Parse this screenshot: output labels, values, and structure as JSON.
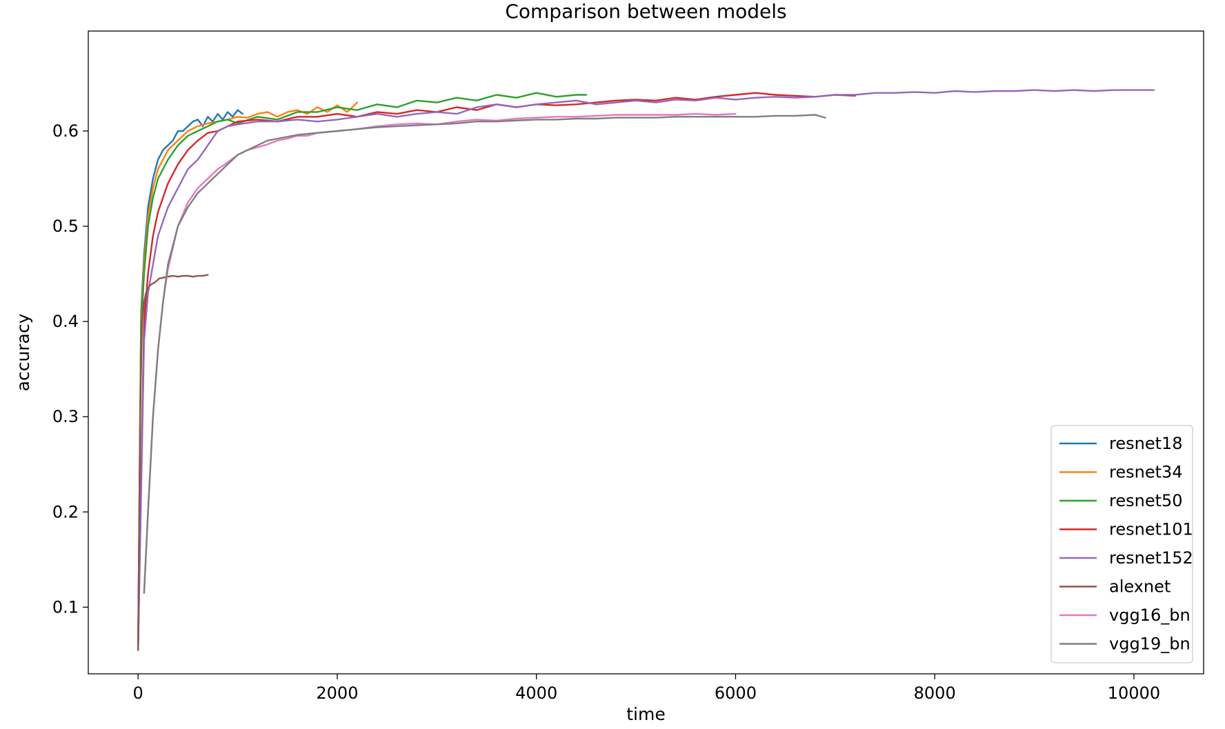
{
  "chart_data": {
    "type": "line",
    "title": "Comparison between models",
    "xlabel": "time",
    "ylabel": "accuracy",
    "xlim": [
      -500,
      10700
    ],
    "ylim": [
      0.03,
      0.705
    ],
    "xticks": [
      0,
      2000,
      4000,
      6000,
      8000,
      10000
    ],
    "xtick_labels": [
      "0",
      "2000",
      "4000",
      "6000",
      "8000",
      "10000"
    ],
    "yticks": [
      0.1,
      0.2,
      0.3,
      0.4,
      0.5,
      0.6
    ],
    "ytick_labels": [
      "0.1",
      "0.2",
      "0.3",
      "0.4",
      "0.5",
      "0.6"
    ],
    "grid": false,
    "legend_position": "lower-right",
    "series": [
      {
        "name": "resnet18",
        "color": "#1f77b4",
        "points": [
          [
            0,
            0.055
          ],
          [
            30,
            0.41
          ],
          [
            60,
            0.47
          ],
          [
            100,
            0.52
          ],
          [
            150,
            0.55
          ],
          [
            200,
            0.57
          ],
          [
            250,
            0.58
          ],
          [
            300,
            0.585
          ],
          [
            350,
            0.59
          ],
          [
            400,
            0.6
          ],
          [
            450,
            0.6
          ],
          [
            500,
            0.605
          ],
          [
            550,
            0.61
          ],
          [
            600,
            0.612
          ],
          [
            650,
            0.605
          ],
          [
            700,
            0.615
          ],
          [
            750,
            0.61
          ],
          [
            800,
            0.618
          ],
          [
            850,
            0.612
          ],
          [
            900,
            0.62
          ],
          [
            950,
            0.615
          ],
          [
            1000,
            0.622
          ],
          [
            1050,
            0.618
          ]
        ]
      },
      {
        "name": "resnet34",
        "color": "#ff7f0e",
        "points": [
          [
            0,
            0.055
          ],
          [
            30,
            0.4
          ],
          [
            60,
            0.46
          ],
          [
            100,
            0.51
          ],
          [
            150,
            0.54
          ],
          [
            200,
            0.56
          ],
          [
            300,
            0.58
          ],
          [
            400,
            0.59
          ],
          [
            500,
            0.6
          ],
          [
            600,
            0.605
          ],
          [
            700,
            0.608
          ],
          [
            800,
            0.61
          ],
          [
            900,
            0.612
          ],
          [
            1000,
            0.615
          ],
          [
            1100,
            0.614
          ],
          [
            1200,
            0.618
          ],
          [
            1300,
            0.62
          ],
          [
            1400,
            0.615
          ],
          [
            1500,
            0.62
          ],
          [
            1600,
            0.622
          ],
          [
            1700,
            0.618
          ],
          [
            1800,
            0.625
          ],
          [
            1900,
            0.62
          ],
          [
            2000,
            0.627
          ],
          [
            2100,
            0.62
          ],
          [
            2200,
            0.63
          ]
        ]
      },
      {
        "name": "resnet50",
        "color": "#2ca02c",
        "points": [
          [
            0,
            0.055
          ],
          [
            30,
            0.39
          ],
          [
            60,
            0.45
          ],
          [
            100,
            0.5
          ],
          [
            150,
            0.53
          ],
          [
            200,
            0.55
          ],
          [
            300,
            0.57
          ],
          [
            400,
            0.585
          ],
          [
            500,
            0.595
          ],
          [
            600,
            0.6
          ],
          [
            700,
            0.605
          ],
          [
            800,
            0.61
          ],
          [
            900,
            0.612
          ],
          [
            1000,
            0.608
          ],
          [
            1200,
            0.615
          ],
          [
            1400,
            0.612
          ],
          [
            1600,
            0.62
          ],
          [
            1800,
            0.62
          ],
          [
            2000,
            0.625
          ],
          [
            2200,
            0.622
          ],
          [
            2400,
            0.628
          ],
          [
            2600,
            0.625
          ],
          [
            2800,
            0.632
          ],
          [
            3000,
            0.63
          ],
          [
            3200,
            0.635
          ],
          [
            3400,
            0.632
          ],
          [
            3600,
            0.638
          ],
          [
            3800,
            0.635
          ],
          [
            4000,
            0.64
          ],
          [
            4200,
            0.636
          ],
          [
            4400,
            0.638
          ],
          [
            4500,
            0.638
          ]
        ]
      },
      {
        "name": "resnet101",
        "color": "#d62728",
        "points": [
          [
            0,
            0.055
          ],
          [
            60,
            0.4
          ],
          [
            100,
            0.45
          ],
          [
            150,
            0.49
          ],
          [
            200,
            0.515
          ],
          [
            300,
            0.545
          ],
          [
            400,
            0.565
          ],
          [
            500,
            0.58
          ],
          [
            600,
            0.59
          ],
          [
            700,
            0.598
          ],
          [
            800,
            0.6
          ],
          [
            900,
            0.605
          ],
          [
            1000,
            0.61
          ],
          [
            1200,
            0.612
          ],
          [
            1400,
            0.61
          ],
          [
            1600,
            0.615
          ],
          [
            1800,
            0.615
          ],
          [
            2000,
            0.618
          ],
          [
            2200,
            0.615
          ],
          [
            2400,
            0.62
          ],
          [
            2600,
            0.618
          ],
          [
            2800,
            0.622
          ],
          [
            3000,
            0.62
          ],
          [
            3200,
            0.625
          ],
          [
            3400,
            0.622
          ],
          [
            3600,
            0.628
          ],
          [
            3800,
            0.625
          ],
          [
            4000,
            0.628
          ],
          [
            4200,
            0.627
          ],
          [
            4400,
            0.628
          ],
          [
            4600,
            0.63
          ],
          [
            4800,
            0.632
          ],
          [
            5000,
            0.633
          ],
          [
            5200,
            0.632
          ],
          [
            5400,
            0.635
          ],
          [
            5600,
            0.633
          ],
          [
            5800,
            0.636
          ],
          [
            6000,
            0.638
          ],
          [
            6200,
            0.64
          ],
          [
            6400,
            0.638
          ],
          [
            6600,
            0.637
          ],
          [
            6800,
            0.636
          ],
          [
            7000,
            0.638
          ],
          [
            7200,
            0.637
          ]
        ]
      },
      {
        "name": "resnet152",
        "color": "#9467bd",
        "points": [
          [
            0,
            0.055
          ],
          [
            60,
            0.38
          ],
          [
            100,
            0.43
          ],
          [
            150,
            0.46
          ],
          [
            200,
            0.49
          ],
          [
            300,
            0.52
          ],
          [
            400,
            0.54
          ],
          [
            500,
            0.56
          ],
          [
            600,
            0.57
          ],
          [
            700,
            0.585
          ],
          [
            800,
            0.6
          ],
          [
            900,
            0.605
          ],
          [
            1000,
            0.607
          ],
          [
            1200,
            0.61
          ],
          [
            1400,
            0.61
          ],
          [
            1600,
            0.612
          ],
          [
            1800,
            0.61
          ],
          [
            2000,
            0.612
          ],
          [
            2200,
            0.615
          ],
          [
            2400,
            0.618
          ],
          [
            2600,
            0.615
          ],
          [
            2800,
            0.618
          ],
          [
            3000,
            0.62
          ],
          [
            3200,
            0.618
          ],
          [
            3400,
            0.625
          ],
          [
            3600,
            0.628
          ],
          [
            3800,
            0.625
          ],
          [
            4000,
            0.628
          ],
          [
            4200,
            0.63
          ],
          [
            4400,
            0.632
          ],
          [
            4600,
            0.628
          ],
          [
            4800,
            0.63
          ],
          [
            5000,
            0.632
          ],
          [
            5200,
            0.63
          ],
          [
            5400,
            0.633
          ],
          [
            5600,
            0.632
          ],
          [
            5800,
            0.635
          ],
          [
            6000,
            0.633
          ],
          [
            6200,
            0.635
          ],
          [
            6400,
            0.636
          ],
          [
            6600,
            0.635
          ],
          [
            6800,
            0.636
          ],
          [
            7000,
            0.638
          ],
          [
            7200,
            0.638
          ],
          [
            7400,
            0.64
          ],
          [
            7600,
            0.64
          ],
          [
            7800,
            0.641
          ],
          [
            8000,
            0.64
          ],
          [
            8200,
            0.642
          ],
          [
            8400,
            0.641
          ],
          [
            8600,
            0.642
          ],
          [
            8800,
            0.642
          ],
          [
            9000,
            0.643
          ],
          [
            9200,
            0.642
          ],
          [
            9400,
            0.643
          ],
          [
            9600,
            0.642
          ],
          [
            9800,
            0.643
          ],
          [
            10000,
            0.643
          ],
          [
            10200,
            0.643
          ]
        ]
      },
      {
        "name": "alexnet",
        "color": "#8c564b",
        "points": [
          [
            0,
            0.055
          ],
          [
            20,
            0.3
          ],
          [
            40,
            0.4
          ],
          [
            60,
            0.42
          ],
          [
            80,
            0.43
          ],
          [
            100,
            0.435
          ],
          [
            120,
            0.438
          ],
          [
            150,
            0.44
          ],
          [
            180,
            0.442
          ],
          [
            210,
            0.445
          ],
          [
            250,
            0.446
          ],
          [
            300,
            0.447
          ],
          [
            350,
            0.448
          ],
          [
            400,
            0.447
          ],
          [
            450,
            0.448
          ],
          [
            500,
            0.448
          ],
          [
            550,
            0.447
          ],
          [
            600,
            0.448
          ],
          [
            650,
            0.448
          ],
          [
            700,
            0.449
          ]
        ]
      },
      {
        "name": "vgg16_bn",
        "color": "#e377c2",
        "points": [
          [
            60,
            0.115
          ],
          [
            100,
            0.2
          ],
          [
            150,
            0.3
          ],
          [
            200,
            0.37
          ],
          [
            250,
            0.42
          ],
          [
            300,
            0.455
          ],
          [
            400,
            0.5
          ],
          [
            500,
            0.525
          ],
          [
            600,
            0.54
          ],
          [
            700,
            0.55
          ],
          [
            800,
            0.56
          ],
          [
            900,
            0.567
          ],
          [
            1000,
            0.575
          ],
          [
            1100,
            0.58
          ],
          [
            1200,
            0.583
          ],
          [
            1300,
            0.586
          ],
          [
            1400,
            0.59
          ],
          [
            1500,
            0.592
          ],
          [
            1600,
            0.595
          ],
          [
            1700,
            0.595
          ],
          [
            1800,
            0.598
          ],
          [
            2000,
            0.6
          ],
          [
            2200,
            0.602
          ],
          [
            2400,
            0.605
          ],
          [
            2600,
            0.607
          ],
          [
            2800,
            0.608
          ],
          [
            3000,
            0.607
          ],
          [
            3200,
            0.61
          ],
          [
            3400,
            0.612
          ],
          [
            3600,
            0.611
          ],
          [
            3800,
            0.613
          ],
          [
            4000,
            0.614
          ],
          [
            4200,
            0.615
          ],
          [
            4400,
            0.615
          ],
          [
            4600,
            0.616
          ],
          [
            4800,
            0.617
          ],
          [
            5000,
            0.617
          ],
          [
            5200,
            0.617
          ],
          [
            5400,
            0.617
          ],
          [
            5600,
            0.618
          ],
          [
            5800,
            0.617
          ],
          [
            6000,
            0.618
          ]
        ]
      },
      {
        "name": "vgg19_bn",
        "color": "#7f7f7f",
        "points": [
          [
            60,
            0.115
          ],
          [
            100,
            0.2
          ],
          [
            150,
            0.3
          ],
          [
            200,
            0.37
          ],
          [
            250,
            0.42
          ],
          [
            300,
            0.46
          ],
          [
            400,
            0.5
          ],
          [
            500,
            0.52
          ],
          [
            600,
            0.535
          ],
          [
            700,
            0.545
          ],
          [
            800,
            0.555
          ],
          [
            900,
            0.565
          ],
          [
            1000,
            0.575
          ],
          [
            1100,
            0.58
          ],
          [
            1200,
            0.585
          ],
          [
            1300,
            0.59
          ],
          [
            1400,
            0.592
          ],
          [
            1500,
            0.594
          ],
          [
            1600,
            0.596
          ],
          [
            1800,
            0.598
          ],
          [
            2000,
            0.6
          ],
          [
            2200,
            0.602
          ],
          [
            2400,
            0.604
          ],
          [
            2600,
            0.605
          ],
          [
            2800,
            0.606
          ],
          [
            3000,
            0.607
          ],
          [
            3200,
            0.608
          ],
          [
            3400,
            0.61
          ],
          [
            3600,
            0.61
          ],
          [
            3800,
            0.611
          ],
          [
            4000,
            0.612
          ],
          [
            4200,
            0.612
          ],
          [
            4400,
            0.613
          ],
          [
            4600,
            0.613
          ],
          [
            4800,
            0.614
          ],
          [
            5000,
            0.614
          ],
          [
            5200,
            0.614
          ],
          [
            5400,
            0.615
          ],
          [
            5600,
            0.615
          ],
          [
            5800,
            0.615
          ],
          [
            6000,
            0.615
          ],
          [
            6200,
            0.615
          ],
          [
            6400,
            0.616
          ],
          [
            6600,
            0.616
          ],
          [
            6800,
            0.617
          ],
          [
            6900,
            0.614
          ]
        ]
      }
    ]
  }
}
